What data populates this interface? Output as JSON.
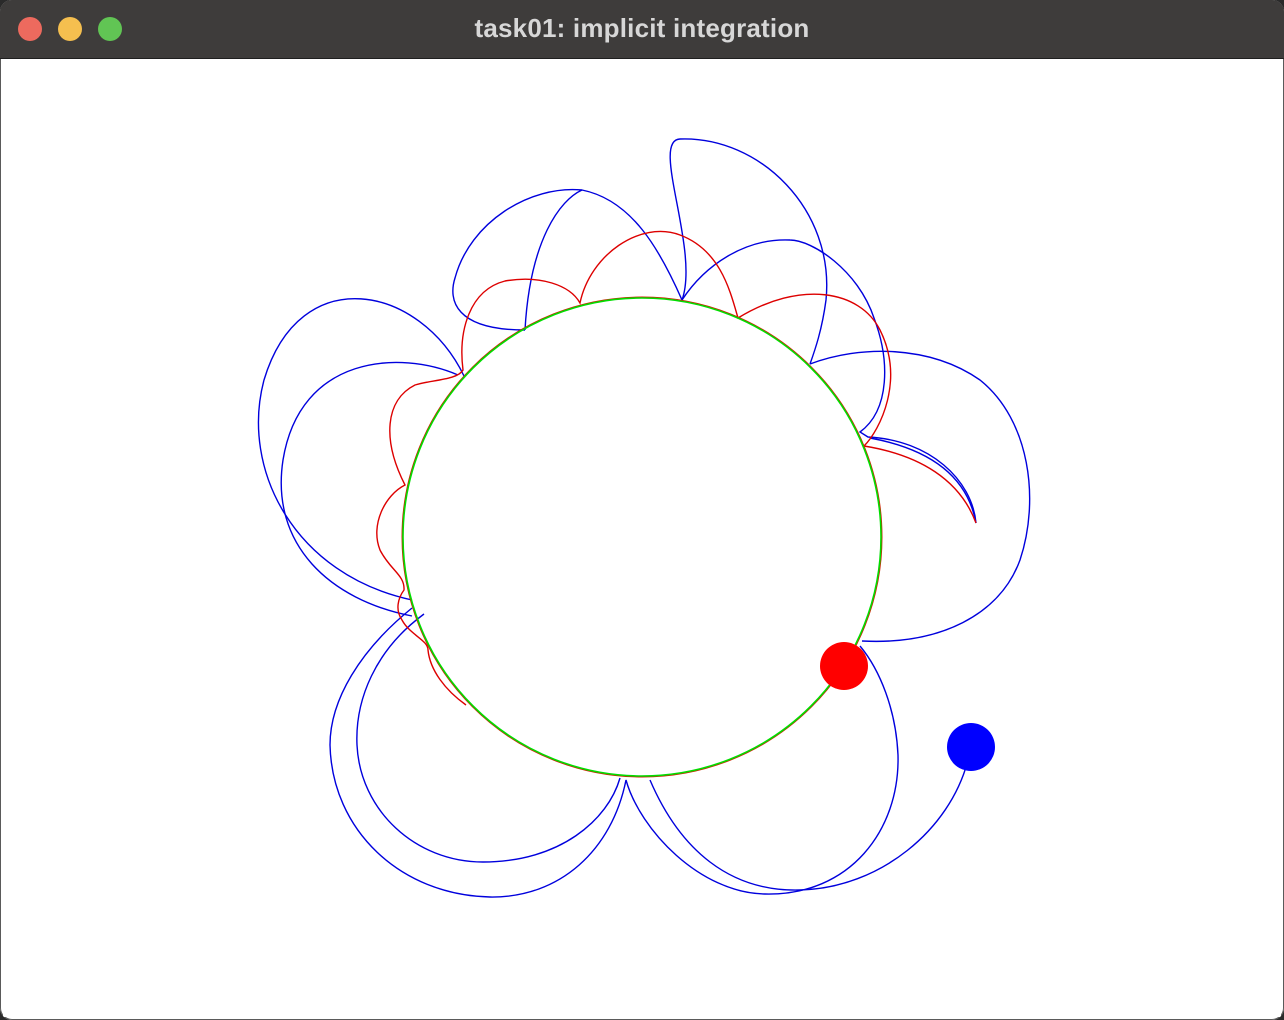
{
  "window": {
    "title": "task01: implicit integration"
  },
  "colors": {
    "constraint_circle": "#00dd00",
    "explicit_trajectory": "#0000dd",
    "implicit_trajectory": "#dd0000",
    "explicit_particle": "#0000ff",
    "implicit_particle": "#ff0000"
  },
  "scene": {
    "constraint_circle": "green-ring",
    "explicit_particle": "blue-dot",
    "implicit_particle": "red-dot"
  }
}
